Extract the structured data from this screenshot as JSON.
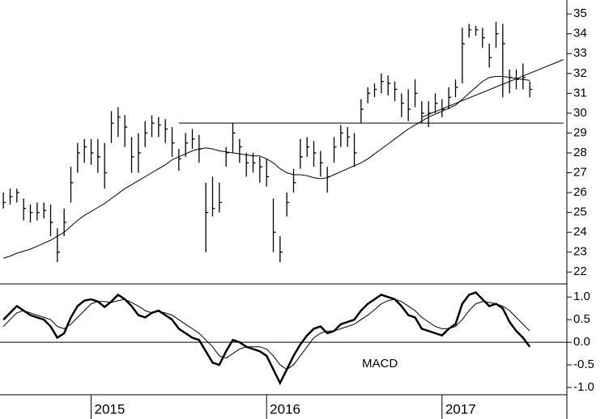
{
  "chart_data": [
    {
      "type": "ohlc",
      "color": "#000000",
      "ylim": [
        21.4,
        35.7
      ],
      "yticks": [
        22,
        23,
        24,
        25,
        26,
        27,
        28,
        29,
        30,
        31,
        32,
        33,
        34,
        35
      ],
      "high": [
        26.0,
        26.2,
        26.2,
        25.7,
        25.4,
        25.5,
        25.5,
        25.4,
        24.2,
        25.2,
        27.3,
        28.5,
        28.7,
        28.7,
        28.7,
        28.5,
        30.1,
        30.3,
        29.9,
        28.8,
        29.0,
        29.6,
        29.9,
        29.8,
        29.7,
        29.3,
        28.2,
        29.0,
        29.2,
        28.9,
        26.5,
        26.8,
        26.5,
        28.3,
        29.5,
        28.7,
        28.0,
        28.0,
        27.8,
        27.7,
        25.7,
        23.8,
        26.0,
        27.2,
        28.7,
        28.8,
        28.6,
        28.1,
        27.3,
        28.8,
        29.4,
        29.3,
        29.0,
        30.7,
        31.3,
        31.5,
        32.0,
        31.9,
        31.6,
        31.0,
        31.2,
        31.7,
        30.6,
        30.6,
        31.0,
        30.7,
        31.3,
        31.7,
        34.3,
        34.5,
        34.4,
        34.3,
        33.5,
        34.6,
        34.5,
        32.2,
        32.2,
        32.5,
        31.6,
        null,
        null,
        null,
        null,
        null
      ],
      "low": [
        25.2,
        25.4,
        25.5,
        24.6,
        24.5,
        24.6,
        24.7,
        23.8,
        22.5,
        23.8,
        25.5,
        27.0,
        27.5,
        27.4,
        27.0,
        26.2,
        28.5,
        28.8,
        28.3,
        27.0,
        27.0,
        28.3,
        28.8,
        28.8,
        28.5,
        27.8,
        27.1,
        27.8,
        28.2,
        27.5,
        23.0,
        24.8,
        25.0,
        27.3,
        28.0,
        27.5,
        26.8,
        27.0,
        26.5,
        26.3,
        23.0,
        22.5,
        24.8,
        26.0,
        27.2,
        27.8,
        27.3,
        26.8,
        26.0,
        27.5,
        28.3,
        28.3,
        27.3,
        29.5,
        30.5,
        30.8,
        31.0,
        30.9,
        30.6,
        29.8,
        29.6,
        30.3,
        29.5,
        29.3,
        30.0,
        29.8,
        30.2,
        30.8,
        31.5,
        33.8,
        33.9,
        33.3,
        32.3,
        33.3,
        30.8,
        31.0,
        31.2,
        31.2,
        30.8,
        null,
        null,
        null,
        null,
        null
      ],
      "close": [
        25.5,
        25.8,
        26.0,
        25.2,
        25.0,
        25.0,
        25.1,
        24.5,
        23.0,
        24.5,
        26.5,
        28.0,
        28.3,
        28.0,
        27.8,
        27.0,
        29.5,
        29.8,
        29.3,
        27.8,
        28.0,
        29.0,
        29.5,
        29.4,
        29.2,
        28.5,
        27.7,
        28.5,
        28.7,
        28.2,
        25.0,
        25.2,
        25.5,
        28.0,
        29.0,
        28.3,
        27.5,
        27.5,
        27.3,
        26.8,
        24.0,
        23.0,
        25.5,
        26.5,
        27.8,
        28.3,
        28.0,
        27.5,
        26.8,
        28.3,
        29.0,
        28.8,
        28.0,
        30.2,
        31.0,
        31.2,
        31.6,
        31.5,
        31.2,
        30.5,
        30.2,
        31.0,
        30.0,
        30.0,
        30.5,
        30.2,
        30.8,
        31.3,
        33.5,
        34.2,
        34.2,
        33.8,
        32.8,
        34.0,
        33.5,
        31.8,
        31.7,
        31.8,
        31.2,
        null,
        null,
        null,
        null,
        null
      ],
      "ma": {
        "color": "#000000",
        "values": [
          22.7,
          22.8,
          22.95,
          23.05,
          23.15,
          23.3,
          23.45,
          23.6,
          23.8,
          24.0,
          24.3,
          24.6,
          24.85,
          25.05,
          25.25,
          25.45,
          25.7,
          25.95,
          26.2,
          26.4,
          26.6,
          26.8,
          27.0,
          27.2,
          27.4,
          27.65,
          27.8,
          27.95,
          28.1,
          28.2,
          28.25,
          28.2,
          28.1,
          28.05,
          28.0,
          27.95,
          27.9,
          27.85,
          27.85,
          27.7,
          27.5,
          27.2,
          27.0,
          26.9,
          26.9,
          26.85,
          26.75,
          26.7,
          26.75,
          26.9,
          27.05,
          27.2,
          27.35,
          27.5,
          27.7,
          27.95,
          28.2,
          28.45,
          28.7,
          28.95,
          29.2,
          29.4,
          29.6,
          29.8,
          29.95,
          30.1,
          30.25,
          30.4,
          30.7,
          31.0,
          31.3,
          31.6,
          31.8,
          31.85,
          31.85,
          31.8,
          31.75,
          31.7,
          31.65,
          null,
          null,
          null,
          null,
          null
        ]
      },
      "reference_lines": [
        {
          "from": 26,
          "to": 83,
          "values": [
            29.5,
            29.5
          ]
        },
        {
          "from": 62,
          "to": 83,
          "values": [
            29.8,
            32.7
          ]
        }
      ]
    },
    {
      "type": "line",
      "ylim": [
        -1.16,
        1.29
      ],
      "annotation": "MACD",
      "yticks": [
        {
          "value": -1,
          "label": "-1.0"
        },
        -0.5,
        {
          "value": 0,
          "label": "0.0"
        },
        0.5,
        {
          "value": 1,
          "label": "1.0"
        }
      ],
      "categories": [
        null,
        null,
        null,
        null,
        null,
        null,
        null,
        null,
        null,
        null,
        null,
        null,
        null,
        "2015",
        null,
        null,
        null,
        null,
        null,
        null,
        null,
        null,
        null,
        null,
        null,
        null,
        null,
        null,
        null,
        null,
        null,
        null,
        null,
        null,
        null,
        null,
        null,
        null,
        null,
        "2016",
        null,
        null,
        null,
        null,
        null,
        null,
        null,
        null,
        null,
        null,
        null,
        null,
        null,
        null,
        null,
        null,
        null,
        null,
        null,
        null,
        null,
        null,
        null,
        null,
        null,
        "2017",
        null,
        null,
        null,
        null,
        null,
        null,
        null,
        null,
        null,
        null,
        null,
        null,
        null,
        null,
        null,
        null,
        null,
        null
      ],
      "lines": [
        {
          "color": "#000000",
          "values": [
            0.5,
            0.65,
            0.8,
            0.7,
            0.6,
            0.55,
            0.5,
            0.35,
            0.1,
            0.2,
            0.55,
            0.8,
            0.92,
            0.95,
            0.9,
            0.78,
            0.9,
            1.05,
            0.95,
            0.8,
            0.6,
            0.55,
            0.65,
            0.7,
            0.6,
            0.5,
            0.3,
            0.2,
            0.1,
            0.05,
            -0.2,
            -0.45,
            -0.5,
            -0.2,
            0.05,
            0.0,
            -0.1,
            -0.15,
            -0.2,
            -0.3,
            -0.6,
            -0.9,
            -0.6,
            -0.3,
            -0.05,
            0.15,
            0.3,
            0.35,
            0.2,
            0.25,
            0.4,
            0.45,
            0.5,
            0.7,
            0.85,
            0.95,
            1.05,
            1.0,
            0.95,
            0.8,
            0.6,
            0.55,
            0.3,
            0.25,
            0.2,
            0.15,
            0.3,
            0.4,
            0.85,
            1.05,
            1.1,
            0.95,
            0.8,
            0.85,
            0.75,
            0.45,
            0.25,
            0.1,
            -0.1,
            null,
            null,
            null,
            null,
            null
          ]
        },
        {
          "color": "#000000",
          "values": [
            0.35,
            0.5,
            0.65,
            0.7,
            0.65,
            0.6,
            0.55,
            0.5,
            0.35,
            0.3,
            0.4,
            0.55,
            0.7,
            0.85,
            0.9,
            0.9,
            0.88,
            0.92,
            0.95,
            0.88,
            0.8,
            0.7,
            0.65,
            0.68,
            0.65,
            0.6,
            0.5,
            0.4,
            0.3,
            0.2,
            0.05,
            -0.1,
            -0.3,
            -0.35,
            -0.25,
            -0.15,
            -0.1,
            -0.1,
            -0.1,
            -0.15,
            -0.3,
            -0.5,
            -0.6,
            -0.5,
            -0.3,
            -0.1,
            0.1,
            0.2,
            0.25,
            0.25,
            0.3,
            0.35,
            0.4,
            0.5,
            0.6,
            0.72,
            0.85,
            0.92,
            0.95,
            0.9,
            0.8,
            0.7,
            0.55,
            0.45,
            0.35,
            0.3,
            0.3,
            0.35,
            0.5,
            0.7,
            0.85,
            0.9,
            0.88,
            0.85,
            0.8,
            0.7,
            0.55,
            0.4,
            0.25,
            null,
            null,
            null,
            null,
            null
          ]
        }
      ]
    }
  ]
}
